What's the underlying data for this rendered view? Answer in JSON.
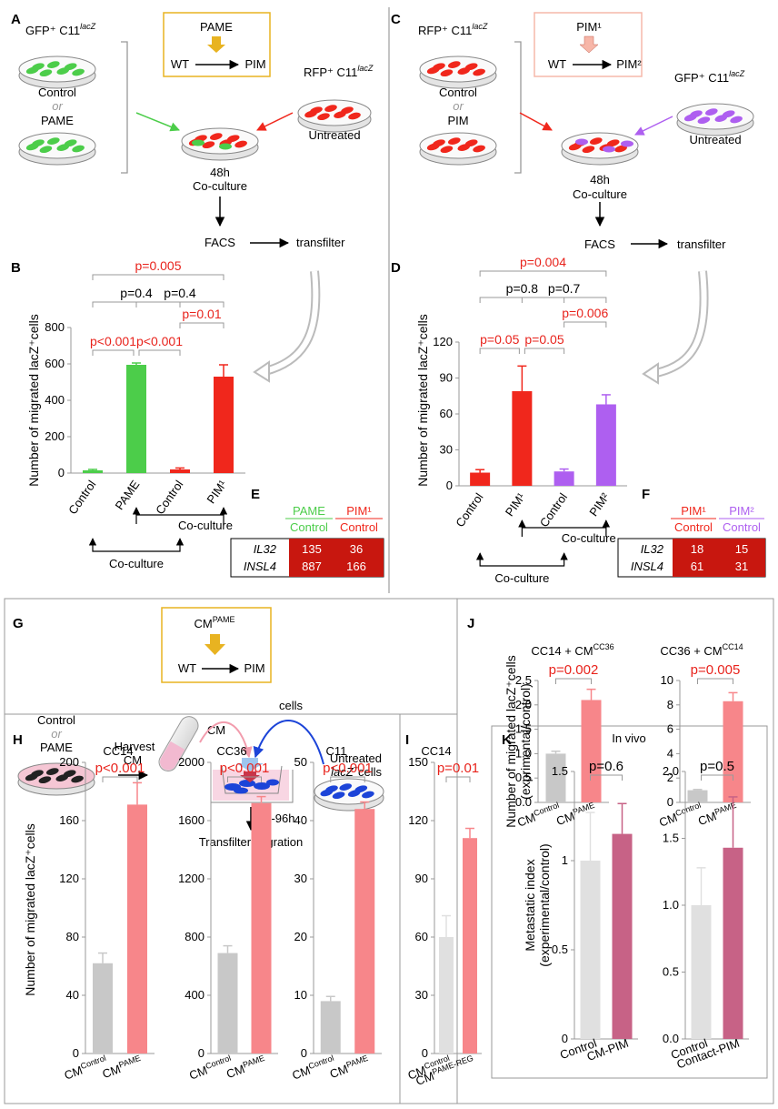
{
  "colors": {
    "green": "#4ccd4a",
    "red": "#f0271c",
    "purple": "#ae5ff0",
    "pink": "#f7868a",
    "gray": "#c8c8c8",
    "lightgray": "#e0e0e0",
    "mauve": "#c76286",
    "sig_red": "#e8231c",
    "box_gold": "#e8b321",
    "box_pink": "#f5b8aa",
    "heat": "#c8170f",
    "arrow_gold": "#e8b321",
    "arrow_salmon": "#f7b6a8"
  },
  "panelA": {
    "letter": "A",
    "gfp_label": "GFP⁺ C11",
    "lacz": "lacZ",
    "dish_top": "Control",
    "or": "or",
    "dish_bottom": "PAME",
    "box_agent": "PAME",
    "box_wt": "WT",
    "box_pim": "PIM",
    "right_label": "RFP⁺ C11",
    "right_dish": "Untreated",
    "co1": "48h",
    "co2": "Co-culture",
    "facs": "FACS",
    "transfilter": "transfilter"
  },
  "panelC": {
    "letter": "C",
    "left_label": "RFP⁺ C11",
    "lacz": "lacZ",
    "dish_top": "Control",
    "or": "or",
    "dish_bottom": "PIM",
    "box_agent": "PIM¹",
    "box_wt": "WT",
    "box_pim": "PIM²",
    "right_label": "GFP⁺ C11",
    "right_dish": "Untreated",
    "co1": "48h",
    "co2": "Co-culture",
    "facs": "FACS",
    "transfilter": "transfilter"
  },
  "panelE": {
    "letter": "E",
    "col1_top": "PAME",
    "col1_bottom": "Control",
    "col2_top": "PIM¹",
    "col2_bottom": "Control",
    "rows": [
      {
        "gene": "IL32",
        "v1": "135",
        "v2": "36"
      },
      {
        "gene": "INSL4",
        "v1": "887",
        "v2": "166"
      }
    ]
  },
  "panelF": {
    "letter": "F",
    "col1_top": "PIM¹",
    "col1_bottom": "Control",
    "col2_top": "PIM²",
    "col2_bottom": "Control",
    "rows": [
      {
        "gene": "IL32",
        "v1": "18",
        "v2": "15"
      },
      {
        "gene": "INSL4",
        "v1": "61",
        "v2": "31"
      }
    ]
  },
  "panelG": {
    "letter": "G",
    "box_agent": "CM",
    "box_agent_sup": "PAME",
    "box_wt": "WT",
    "box_pim": "PIM",
    "ctrl": "Control",
    "or": "or",
    "pame": "PAME",
    "harvest1": "Harvest",
    "harvest2": "CM",
    "cm": "CM",
    "cells": "cells",
    "untreated1": "Untreated",
    "untreated2": "cells",
    "lacz": "lacZ",
    "lacz_sup": "+",
    "time": "72-96h",
    "migration": "Transfilter migration"
  },
  "chart_data": [
    {
      "id": "B",
      "type": "bar",
      "categories": [
        "Control",
        "PAME",
        "Control",
        "PIM¹"
      ],
      "values": [
        15,
        595,
        20,
        530
      ],
      "errors": [
        5,
        10,
        8,
        65
      ],
      "ylabel": "Number of migrated lacZ⁺cells",
      "yticks": [
        "0",
        "200",
        "400",
        "600",
        "800"
      ],
      "ylim": [
        0,
        800
      ],
      "colors": [
        "green",
        "green",
        "red",
        "red"
      ],
      "comparisons": [
        {
          "from": 0,
          "to": 1,
          "label": "p<0.001",
          "sig": true,
          "level": 1
        },
        {
          "from": 1,
          "to": 2,
          "label": "p<0.001",
          "sig": true,
          "level": 1
        },
        {
          "from": 2,
          "to": 3,
          "label": "p=0.01",
          "sig": true,
          "level": 2
        },
        {
          "from": 0,
          "to": 2,
          "label": "p=0.4",
          "sig": false,
          "level": 3
        },
        {
          "from": 1,
          "to": 3,
          "label": "p=0.4",
          "sig": false,
          "level": 4
        },
        {
          "from": 0,
          "to": 3,
          "label": "p=0.005",
          "sig": true,
          "level": 5
        }
      ],
      "coculture": "Co-culture"
    },
    {
      "id": "D",
      "type": "bar",
      "categories": [
        "Control",
        "PIM¹",
        "Control",
        "PIM²"
      ],
      "values": [
        11,
        79,
        12,
        68
      ],
      "errors": [
        2.5,
        21,
        2,
        8
      ],
      "ylabel": "Number of migrated lacZ⁺cells",
      "yticks": [
        "0",
        "30",
        "60",
        "90",
        "120"
      ],
      "ylim": [
        0,
        120
      ],
      "colors": [
        "red",
        "red",
        "purple",
        "purple"
      ],
      "comparisons": [
        {
          "from": 0,
          "to": 1,
          "label": "p=0.05",
          "sig": true,
          "level": 1
        },
        {
          "from": 1,
          "to": 2,
          "label": "p=0.05",
          "sig": true,
          "level": 1
        },
        {
          "from": 2,
          "to": 3,
          "label": "p=0.006",
          "sig": true,
          "level": 2
        },
        {
          "from": 0,
          "to": 2,
          "label": "p=0.8",
          "sig": false,
          "level": 3
        },
        {
          "from": 1,
          "to": 3,
          "label": "p=0.7",
          "sig": false,
          "level": 4
        },
        {
          "from": 0,
          "to": 3,
          "label": "p=0.004",
          "sig": true,
          "level": 5
        }
      ],
      "coculture": "Co-culture"
    },
    {
      "id": "J1",
      "type": "bar",
      "title": "CC14 + CM",
      "title_sup": "CC36",
      "categories": [
        "CM",
        "CM"
      ],
      "cat_sups": [
        "Control",
        "PAME"
      ],
      "values": [
        1.0,
        2.1
      ],
      "errors": [
        0.05,
        0.22
      ],
      "yticks": [
        "0.0",
        "0.5",
        "1.0",
        "1.5",
        "2.0",
        "2.5"
      ],
      "ylim": [
        0,
        2.5
      ],
      "colors": [
        "gray",
        "pink"
      ],
      "p": "p=0.002",
      "ylabel1": "Number of migrated lacZ⁺cells",
      "ylabel2": "(exprimental/control)"
    },
    {
      "id": "J2",
      "type": "bar",
      "title": "CC36 + CM",
      "title_sup": "CC14",
      "categories": [
        "CM",
        "CM"
      ],
      "cat_sups": [
        "Control",
        "PAME"
      ],
      "values": [
        1.0,
        8.3
      ],
      "errors": [
        0.06,
        0.7
      ],
      "yticks": [
        "0",
        "2",
        "4",
        "6",
        "8",
        "10"
      ],
      "ylim": [
        0,
        10
      ],
      "colors": [
        "gray",
        "pink"
      ],
      "p": "p=0.005"
    },
    {
      "id": "H1",
      "type": "bar",
      "title": "CC14",
      "categories": [
        "CM",
        "CM"
      ],
      "cat_sups": [
        "Control",
        "PAME"
      ],
      "values": [
        62,
        171
      ],
      "errors": [
        7,
        15
      ],
      "yticks": [
        "0",
        "40",
        "80",
        "120",
        "160",
        "200"
      ],
      "ylim": [
        0,
        200
      ],
      "colors": [
        "gray",
        "pink"
      ],
      "p": "p<0.001",
      "ylabel1": "Number of migrated lacZ⁺cells"
    },
    {
      "id": "H2",
      "type": "bar",
      "title": "CC36",
      "categories": [
        "CM",
        "CM"
      ],
      "cat_sups": [
        "Control",
        "PAME"
      ],
      "values": [
        690,
        1720
      ],
      "errors": [
        50,
        45
      ],
      "yticks": [
        "0",
        "400",
        "800",
        "1200",
        "1600",
        "2000"
      ],
      "ylim": [
        0,
        2000
      ],
      "colors": [
        "gray",
        "pink"
      ],
      "p": "p<0.001"
    },
    {
      "id": "H3",
      "type": "bar",
      "title": "C11",
      "categories": [
        "CM",
        "CM"
      ],
      "cat_sups": [
        "Control",
        "PAME"
      ],
      "values": [
        9,
        42
      ],
      "errors": [
        0.8,
        1.2
      ],
      "yticks": [
        "0",
        "10",
        "20",
        "30",
        "40",
        "50"
      ],
      "ylim": [
        0,
        50
      ],
      "colors": [
        "gray",
        "pink"
      ],
      "p": "p<0.001"
    },
    {
      "id": "I",
      "type": "bar",
      "title": "CC14",
      "categories": [
        "CM",
        "CM"
      ],
      "cat_sups": [
        "Control",
        "PAME-REG"
      ],
      "values": [
        60,
        111
      ],
      "errors": [
        11,
        5
      ],
      "yticks": [
        "0",
        "30",
        "60",
        "90",
        "120",
        "150"
      ],
      "ylim": [
        0,
        150
      ],
      "colors": [
        "lightgray",
        "pink"
      ],
      "p": "p=0.01"
    },
    {
      "id": "K1",
      "type": "bar",
      "categories": [
        "Control",
        "CM-PIM"
      ],
      "values": [
        1.0,
        1.15
      ],
      "errors": [
        0.27,
        0.17
      ],
      "yticks": [
        "0",
        "0.5",
        "1",
        "1.5"
      ],
      "ylim": [
        0,
        1.5
      ],
      "colors": [
        "lightgray",
        "mauve"
      ],
      "p": "p=0.6",
      "ylabel1": "Metastatic index",
      "ylabel2": "(experimental/control)"
    },
    {
      "id": "K2",
      "type": "bar",
      "categories": [
        "Control",
        "Contact-PIM"
      ],
      "values": [
        1.0,
        1.43
      ],
      "errors": [
        0.28,
        0.38
      ],
      "yticks": [
        "0.0",
        "0.5",
        "1.0",
        "1.5",
        "2.0"
      ],
      "ylim": [
        0,
        2.0
      ],
      "colors": [
        "lightgray",
        "mauve"
      ],
      "p": "p=0.5"
    }
  ],
  "letters": {
    "B": "B",
    "D": "D",
    "H": "H",
    "I": "I",
    "J": "J",
    "K": "K"
  },
  "in_vivo": "In vivo"
}
